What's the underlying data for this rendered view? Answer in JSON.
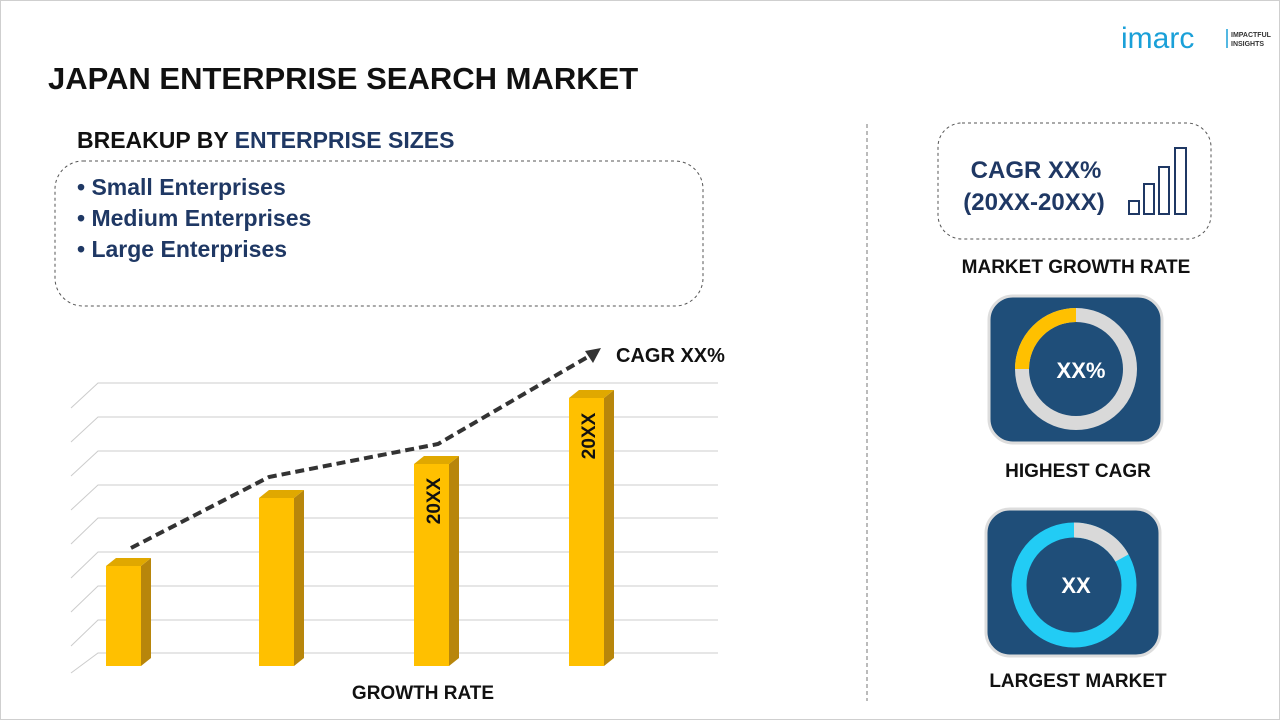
{
  "logo": {
    "brand": "imarc",
    "tagline": [
      "IMPACTFUL",
      "INSIGHTS"
    ]
  },
  "title": "JAPAN ENTERPRISE SEARCH MARKET",
  "breakup": {
    "label": "BREAKUP BY",
    "highlight": "ENTERPRISE SIZES",
    "items": [
      "Small Enterprises",
      "Medium Enterprises",
      "Large Enterprises"
    ]
  },
  "growth_chart": {
    "cagr_label": "CAGR XX%",
    "bar_labels": [
      "20XX",
      "20XX"
    ],
    "axis_label": "GROWTH RATE"
  },
  "market_growth": {
    "cagr": "CAGR XX%",
    "period": "(20XX-20XX)",
    "caption": "MARKET GROWTH RATE"
  },
  "highest_cagr": {
    "value": "XX%",
    "caption": "HIGHEST CAGR"
  },
  "largest_market": {
    "value": "XX",
    "caption": "LARGEST MARKET"
  }
}
